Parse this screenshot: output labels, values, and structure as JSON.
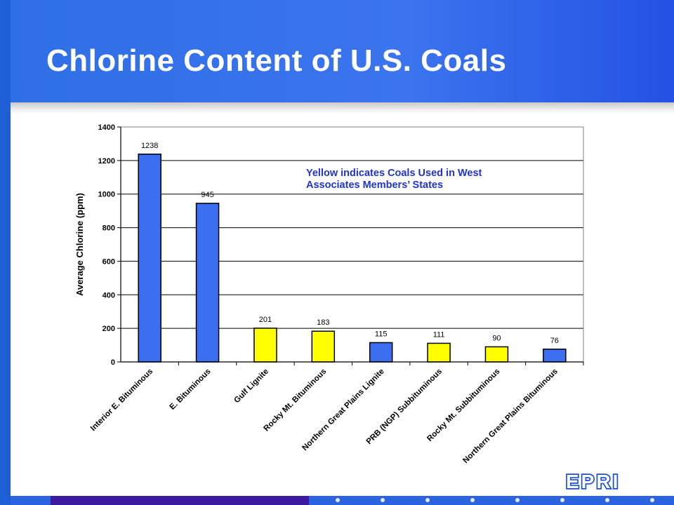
{
  "slide": {
    "title": "Chlorine Content of U.S. Coals",
    "logo": "EPRI",
    "colors": {
      "header": "#2f6fe6",
      "blue_bar": "#3b6ff0",
      "yellow_bar": "#ffff00",
      "footer_purple": "#3b1aa0"
    }
  },
  "chart_data": {
    "type": "bar",
    "ylabel": "Average Chlorine (ppm)",
    "ylim": [
      0,
      1400
    ],
    "yticks": [
      0,
      200,
      400,
      600,
      800,
      1000,
      1200,
      1400
    ],
    "grid": true,
    "annotation": [
      "Yellow indicates Coals Used in West",
      "Associates Members’ States"
    ],
    "categories": [
      "Interior E. Bituminous",
      "E. Bituminous",
      "Gulf Lignite",
      "Rocky Mt. Bituminous",
      "Northern Great Plains Lignite",
      "PRB (NGP) Subbituminous",
      "Rocky Mt. Subbituminous",
      "Northern Great Plains Bituminous"
    ],
    "values": [
      1238,
      945,
      201,
      183,
      115,
      111,
      90,
      76
    ],
    "data_labels": [
      "1238",
      "945",
      "201",
      "183",
      "115",
      "111",
      "90",
      "76"
    ],
    "bar_colors": [
      "blue",
      "blue",
      "yellow",
      "yellow",
      "blue",
      "yellow",
      "yellow",
      "blue"
    ]
  }
}
